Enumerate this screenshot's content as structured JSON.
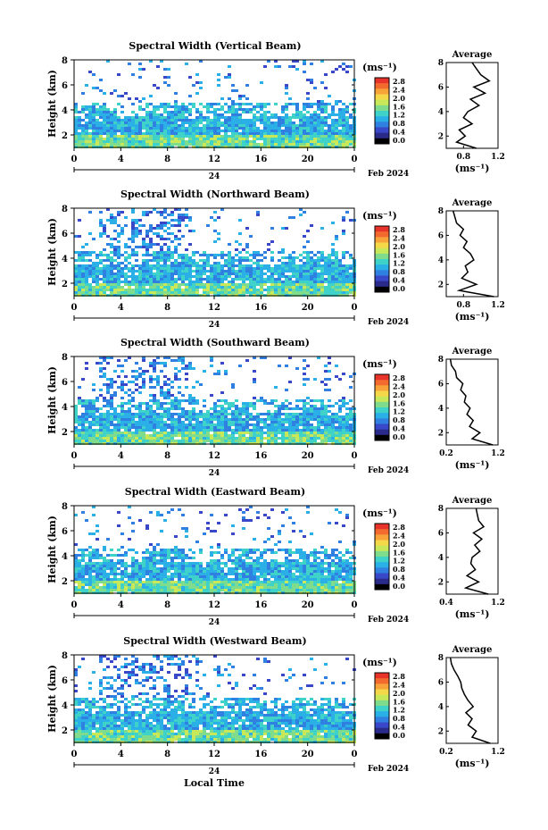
{
  "figure": {
    "time_axis_label": "Local Time",
    "date_label": "Feb 2024",
    "day_label": "24"
  },
  "colorbar": {
    "unit_label": "(ms⁻¹)",
    "tick_labels": [
      "2.8",
      "2.4",
      "2.0",
      "1.6",
      "1.2",
      "0.8",
      "0.4",
      "0.0"
    ],
    "colors": [
      "#e8332a",
      "#f26a2e",
      "#f8a23a",
      "#f5d84a",
      "#c8e85a",
      "#7fdc8c",
      "#3fd2c8",
      "#2ab0e6",
      "#2f80e0",
      "#3848c8",
      "#2a2a8a",
      "#000000"
    ]
  },
  "chart_data": [
    {
      "type": "heatmap",
      "title": "Spectral Width (Vertical Beam)",
      "ylabel": "Height (km)",
      "x_ticks": [
        "0",
        "4",
        "8",
        "12",
        "16",
        "20",
        "0"
      ],
      "y_ticks": [
        "2",
        "4",
        "6",
        "8"
      ],
      "xlim": [
        0,
        24
      ],
      "ylim": [
        1,
        8
      ],
      "avg_title": "Average",
      "avg_xlabel": "(ms⁻¹)",
      "avg_xticks": [
        "0.8",
        "1.2"
      ],
      "avg_xlim": [
        0.6,
        1.2
      ],
      "avg_profile": {
        "height": [
          1.0,
          1.5,
          2.0,
          2.5,
          3.0,
          3.5,
          4.0,
          4.5,
          5.0,
          5.5,
          6.0,
          6.5,
          7.0,
          7.5,
          8.0
        ],
        "value": [
          0.95,
          0.72,
          0.82,
          0.75,
          0.9,
          0.8,
          0.85,
          0.98,
          0.88,
          1.05,
          0.92,
          1.1,
          1.0,
          0.95,
          0.9
        ]
      }
    },
    {
      "type": "heatmap",
      "title": "Spectral Width (Northward Beam)",
      "ylabel": "Height (km)",
      "x_ticks": [
        "0",
        "4",
        "8",
        "12",
        "16",
        "20",
        "0"
      ],
      "y_ticks": [
        "2",
        "4",
        "6",
        "8"
      ],
      "xlim": [
        0,
        24
      ],
      "ylim": [
        1,
        8
      ],
      "avg_title": "Average",
      "avg_xlabel": "(ms⁻¹)",
      "avg_xticks": [
        "0.8",
        "1.2"
      ],
      "avg_xlim": [
        0.6,
        1.2
      ],
      "avg_profile": {
        "height": [
          1.0,
          1.5,
          2.0,
          2.5,
          3.0,
          3.5,
          4.0,
          4.5,
          5.0,
          5.5,
          6.0,
          6.5,
          7.0,
          7.5,
          8.0
        ],
        "value": [
          1.15,
          0.75,
          0.95,
          0.78,
          0.85,
          0.82,
          0.92,
          0.88,
          0.8,
          0.84,
          0.76,
          0.8,
          0.72,
          0.7,
          0.68
        ]
      }
    },
    {
      "type": "heatmap",
      "title": "Spectral Width (Southward Beam)",
      "ylabel": "Height (km)",
      "x_ticks": [
        "0",
        "4",
        "8",
        "12",
        "16",
        "20",
        "0"
      ],
      "y_ticks": [
        "2",
        "4",
        "6",
        "8"
      ],
      "xlim": [
        0,
        24
      ],
      "ylim": [
        1,
        8
      ],
      "avg_title": "Average",
      "avg_xlabel": "(ms⁻¹)",
      "avg_xticks": [
        "0.2",
        "1.2"
      ],
      "avg_xlim": [
        0.2,
        1.2
      ],
      "avg_profile": {
        "height": [
          1.0,
          1.5,
          2.0,
          2.5,
          3.0,
          3.5,
          4.0,
          4.5,
          5.0,
          5.5,
          6.0,
          6.5,
          7.0,
          7.5,
          8.0
        ],
        "value": [
          1.1,
          0.7,
          0.85,
          0.65,
          0.72,
          0.6,
          0.66,
          0.55,
          0.58,
          0.48,
          0.52,
          0.4,
          0.38,
          0.3,
          0.28
        ]
      }
    },
    {
      "type": "heatmap",
      "title": "Spectral Width (Eastward Beam)",
      "ylabel": "Height (km)",
      "x_ticks": [
        "0",
        "4",
        "8",
        "12",
        "16",
        "20",
        "0"
      ],
      "y_ticks": [
        "2",
        "4",
        "6",
        "8"
      ],
      "xlim": [
        0,
        24
      ],
      "ylim": [
        1,
        8
      ],
      "avg_title": "Average",
      "avg_xlabel": "(ms⁻¹)",
      "avg_xticks": [
        "0.4",
        "1.2"
      ],
      "avg_xlim": [
        0.4,
        1.2
      ],
      "avg_profile": {
        "height": [
          1.0,
          1.5,
          2.0,
          2.5,
          3.0,
          3.5,
          4.0,
          4.5,
          5.0,
          5.5,
          6.0,
          6.5,
          7.0,
          7.5,
          8.0
        ],
        "value": [
          1.05,
          0.7,
          0.9,
          0.72,
          0.85,
          0.78,
          0.8,
          0.92,
          0.84,
          0.95,
          0.82,
          0.98,
          0.9,
          0.88,
          0.86
        ]
      }
    },
    {
      "type": "heatmap",
      "title": "Spectral Width (Westward Beam)",
      "ylabel": "Height (km)",
      "x_ticks": [
        "0",
        "4",
        "8",
        "12",
        "16",
        "20",
        "0"
      ],
      "y_ticks": [
        "2",
        "4",
        "6",
        "8"
      ],
      "xlim": [
        0,
        24
      ],
      "ylim": [
        1,
        8
      ],
      "avg_title": "Average",
      "avg_xlabel": "(ms⁻¹)",
      "avg_xticks": [
        "0.2",
        "1.2"
      ],
      "avg_xlim": [
        0.2,
        1.2
      ],
      "avg_profile": {
        "height": [
          1.0,
          1.5,
          2.0,
          2.5,
          3.0,
          3.5,
          4.0,
          4.5,
          5.0,
          5.5,
          6.0,
          6.5,
          7.0,
          7.5,
          8.0
        ],
        "value": [
          1.05,
          0.7,
          0.78,
          0.62,
          0.7,
          0.58,
          0.72,
          0.62,
          0.55,
          0.5,
          0.48,
          0.42,
          0.35,
          0.3,
          0.28
        ]
      }
    }
  ]
}
